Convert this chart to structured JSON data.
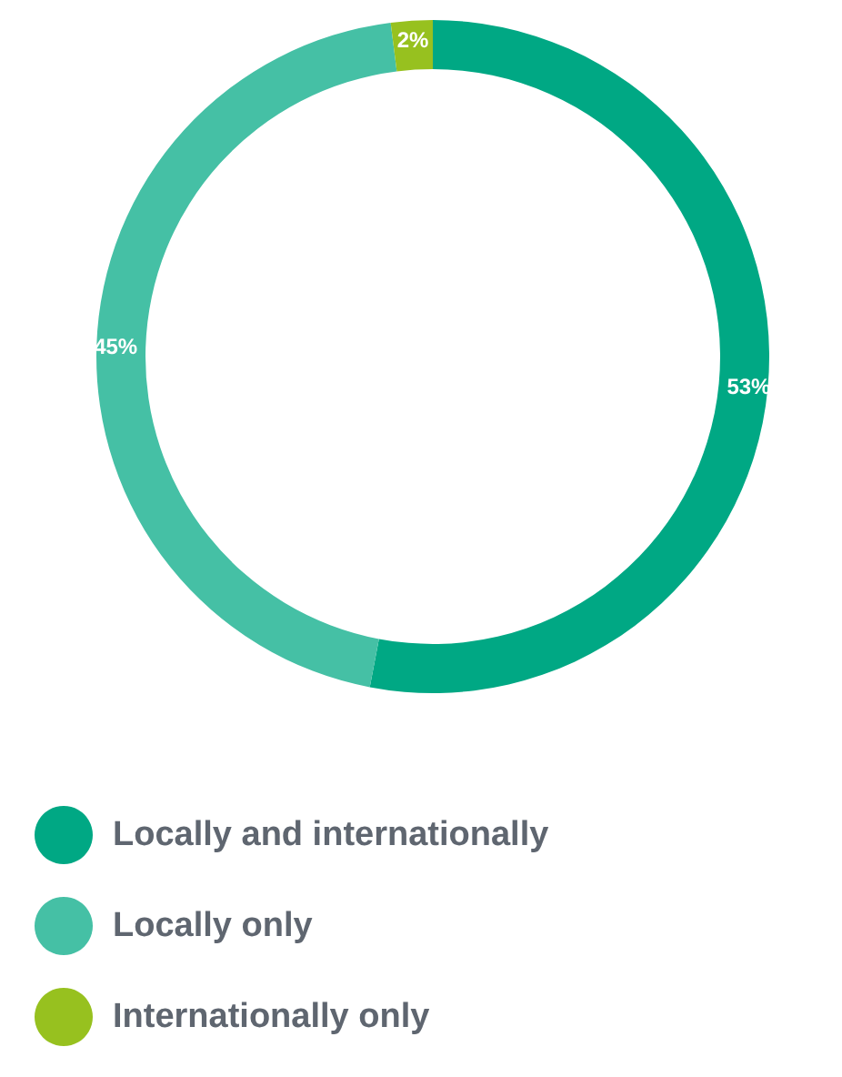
{
  "chart_data": {
    "type": "donut",
    "categories": [
      "Locally and internationally",
      "Locally only",
      "Internationally only"
    ],
    "values": [
      53,
      45,
      2
    ],
    "colors": [
      "#00a884",
      "#45c0a5",
      "#97c11f"
    ],
    "value_labels": [
      "53%",
      "45%",
      "2%"
    ],
    "legend": "bottom"
  }
}
